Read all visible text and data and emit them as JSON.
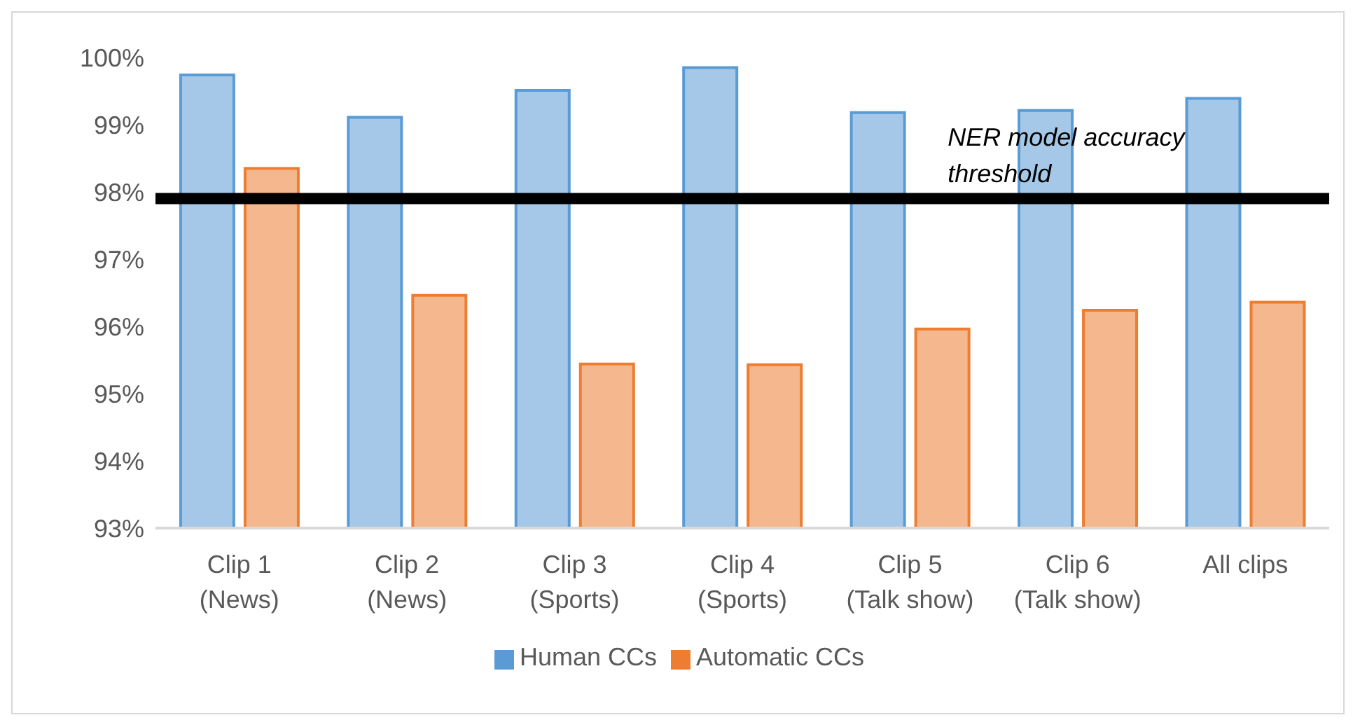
{
  "chart_data": {
    "type": "bar",
    "categories": [
      "Clip 1 (News)",
      "Clip 2 (News)",
      "Clip 3 (Sports)",
      "Clip 4 (Sports)",
      "Clip 5 (Talk show)",
      "Clip 6 (Talk show)",
      "All clips"
    ],
    "series": [
      {
        "name": "Human CCs",
        "color": "#5b9bd5",
        "values": [
          99.74,
          99.11,
          99.51,
          99.85,
          99.18,
          99.21,
          99.39
        ]
      },
      {
        "name": "Automatic CCs",
        "color": "#ed7d31",
        "values": [
          98.35,
          96.46,
          95.44,
          95.43,
          95.96,
          96.24,
          96.36
        ]
      }
    ],
    "ylim": [
      93,
      100
    ],
    "yticks": [
      {
        "value": 93,
        "label": "93%"
      },
      {
        "value": 94,
        "label": "94%"
      },
      {
        "value": 95,
        "label": "95%"
      },
      {
        "value": 96,
        "label": "96%"
      },
      {
        "value": 97,
        "label": "97%"
      },
      {
        "value": 98,
        "label": "98%"
      },
      {
        "value": 99,
        "label": "99%"
      },
      {
        "value": 100,
        "label": "100%"
      }
    ],
    "ref_lines": [
      {
        "axis": "y",
        "value": 97.9,
        "label": "NER model accuracy threshold",
        "color": "#000000"
      }
    ],
    "grid": false,
    "legend": "bottom"
  }
}
